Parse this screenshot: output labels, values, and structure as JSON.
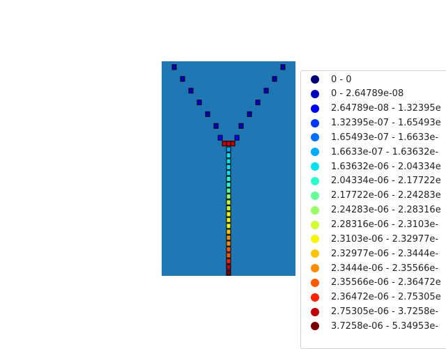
{
  "chart_data": {
    "type": "scatter",
    "plot_background": "#1f77b4",
    "marker_shape": "square",
    "legend_placement": "right",
    "legend": [
      {
        "label": "0 - 0",
        "color": "#00007f"
      },
      {
        "label": "0 - 2.64789e-08",
        "color": "#0000c4"
      },
      {
        "label": "2.64789e-08 - 1.32395e",
        "color": "#0000ff"
      },
      {
        "label": "1.32395e-07 - 1.65493e",
        "color": "#0038ff"
      },
      {
        "label": "1.65493e-07 - 1.6633e-",
        "color": "#0070ff"
      },
      {
        "label": "1.6633e-07 - 1.63632e-",
        "color": "#00acff"
      },
      {
        "label": "1.63632e-06 - 2.04334e",
        "color": "#00e4f8"
      },
      {
        "label": "2.04334e-06 - 2.17722e",
        "color": "#29ffce"
      },
      {
        "label": "2.17722e-06 - 2.24283e",
        "color": "#61ff96"
      },
      {
        "label": "2.24283e-06 - 2.28316e",
        "color": "#96ff61"
      },
      {
        "label": "2.28316e-06 - 2.3103e-",
        "color": "#ceff29"
      },
      {
        "label": "2.3103e-06 - 2.32977e-",
        "color": "#f8f500"
      },
      {
        "label": "2.32977e-06 - 2.3444e-",
        "color": "#ffc400"
      },
      {
        "label": "2.3444e-06 - 2.35566e-",
        "color": "#ff8c00"
      },
      {
        "label": "2.35566e-06 - 2.36472e",
        "color": "#ff5900"
      },
      {
        "label": "2.36472e-06 - 2.75305e",
        "color": "#ff2100"
      },
      {
        "label": "2.75305e-06 - 3.7258e-",
        "color": "#c40000"
      },
      {
        "label": "3.7258e-06 - 5.34953e-",
        "color": "#7f0000"
      }
    ],
    "series": [
      {
        "points": [
          [
            -6.5,
            25.5
          ],
          [
            6.5,
            25.5
          ],
          [
            -5.5,
            24.5
          ],
          [
            5.5,
            24.5
          ],
          [
            -4.5,
            23.5
          ],
          [
            4.5,
            23.5
          ],
          [
            -3.5,
            22.5
          ],
          [
            3.5,
            22.5
          ],
          [
            -2.5,
            21.5
          ],
          [
            2.5,
            21.5
          ],
          [
            -1.5,
            20.5
          ],
          [
            1.5,
            20.5
          ]
        ],
        "class": 1
      },
      {
        "points": [
          [
            -1,
            19.5
          ],
          [
            1,
            19.5
          ]
        ],
        "class": 2
      },
      {
        "points": [
          [
            -0.5,
            19
          ],
          [
            0,
            19
          ],
          [
            0.5,
            19
          ]
        ],
        "class": 16
      },
      {
        "points": [
          [
            0,
            18.5
          ]
        ],
        "class": 5
      },
      {
        "points": [
          [
            0,
            18
          ],
          [
            0,
            17.5
          ],
          [
            0,
            17
          ],
          [
            0,
            16.5
          ]
        ],
        "class": 6
      },
      {
        "points": [
          [
            0,
            16
          ],
          [
            0,
            15.5
          ]
        ],
        "class": 7
      },
      {
        "points": [
          [
            0,
            15
          ]
        ],
        "class": 8
      },
      {
        "points": [
          [
            0,
            14.5
          ]
        ],
        "class": 9
      },
      {
        "points": [
          [
            0,
            14
          ],
          [
            0,
            13.5
          ]
        ],
        "class": 10
      },
      {
        "points": [
          [
            0,
            13
          ],
          [
            0,
            12.5
          ],
          [
            0,
            12
          ]
        ],
        "class": 11
      },
      {
        "points": [
          [
            0,
            11.5
          ]
        ],
        "class": 12
      },
      {
        "points": [
          [
            0,
            11
          ],
          [
            0,
            10.5
          ]
        ],
        "class": 13
      },
      {
        "points": [
          [
            0,
            10
          ],
          [
            0,
            9.5
          ]
        ],
        "class": 14
      },
      {
        "points": [
          [
            0,
            9
          ]
        ],
        "class": 15
      },
      {
        "points": [
          [
            0,
            8.5
          ]
        ],
        "class": 16
      },
      {
        "points": [
          [
            0,
            8
          ]
        ],
        "class": 17
      }
    ],
    "xlim": [
      -8,
      8
    ],
    "ylim": [
      7.75,
      26.0
    ]
  }
}
